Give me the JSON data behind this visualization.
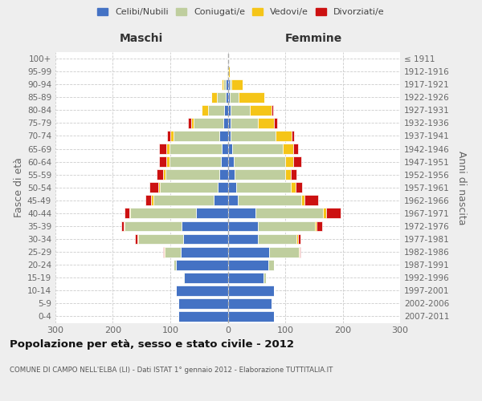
{
  "age_groups": [
    "0-4",
    "5-9",
    "10-14",
    "15-19",
    "20-24",
    "25-29",
    "30-34",
    "35-39",
    "40-44",
    "45-49",
    "50-54",
    "55-59",
    "60-64",
    "65-69",
    "70-74",
    "75-79",
    "80-84",
    "85-89",
    "90-94",
    "95-99",
    "100+"
  ],
  "birth_years": [
    "2007-2011",
    "2002-2006",
    "1997-2001",
    "1992-1996",
    "1987-1991",
    "1982-1986",
    "1977-1981",
    "1972-1976",
    "1967-1971",
    "1962-1966",
    "1957-1961",
    "1952-1956",
    "1947-1951",
    "1942-1946",
    "1937-1941",
    "1932-1936",
    "1927-1931",
    "1922-1926",
    "1917-1921",
    "1912-1916",
    "≤ 1911"
  ],
  "maschi": {
    "celibi": [
      86,
      86,
      90,
      76,
      90,
      82,
      78,
      80,
      55,
      25,
      18,
      14,
      12,
      10,
      15,
      8,
      6,
      4,
      3,
      1,
      1
    ],
    "coniugati": [
      0,
      0,
      0,
      2,
      5,
      28,
      78,
      100,
      115,
      105,
      100,
      95,
      90,
      92,
      80,
      52,
      28,
      15,
      5,
      1,
      0
    ],
    "vedovi": [
      0,
      0,
      0,
      0,
      0,
      1,
      1,
      1,
      2,
      3,
      3,
      3,
      5,
      5,
      5,
      4,
      12,
      10,
      2,
      0,
      0
    ],
    "divorziati": [
      0,
      0,
      0,
      0,
      0,
      2,
      5,
      5,
      8,
      10,
      16,
      12,
      12,
      12,
      5,
      5,
      0,
      0,
      0,
      0,
      0
    ]
  },
  "femmine": {
    "nubili": [
      80,
      76,
      80,
      62,
      70,
      72,
      52,
      52,
      48,
      18,
      15,
      12,
      10,
      8,
      5,
      5,
      5,
      4,
      3,
      1,
      0
    ],
    "coniugate": [
      0,
      0,
      0,
      5,
      10,
      52,
      68,
      100,
      118,
      110,
      95,
      88,
      90,
      88,
      78,
      48,
      33,
      15,
      3,
      0,
      0
    ],
    "vedove": [
      0,
      0,
      0,
      0,
      0,
      1,
      2,
      3,
      5,
      5,
      8,
      10,
      14,
      18,
      28,
      28,
      38,
      45,
      20,
      2,
      0
    ],
    "divorziate": [
      0,
      0,
      0,
      0,
      0,
      2,
      5,
      10,
      25,
      25,
      12,
      10,
      14,
      8,
      5,
      5,
      3,
      0,
      0,
      0,
      0
    ]
  },
  "colors": {
    "celibi": "#4472C4",
    "coniugati": "#BFCE9E",
    "vedovi": "#F5C518",
    "divorziati": "#CC1111"
  },
  "xlim": 300,
  "title": "Popolazione per età, sesso e stato civile - 2012",
  "subtitle": "COMUNE DI CAMPO NELL'ELBA (LI) - Dati ISTAT 1° gennaio 2012 - Elaborazione TUTTITALIA.IT",
  "ylabel_left": "Fasce di età",
  "ylabel_right": "Anni di nascita",
  "xlabel_left": "Maschi",
  "xlabel_right": "Femmine",
  "legend_labels": [
    "Celibi/Nubili",
    "Coniugati/e",
    "Vedovi/e",
    "Divorziati/e"
  ],
  "bg_color": "#eeeeee",
  "plot_bg_color": "#ffffff"
}
